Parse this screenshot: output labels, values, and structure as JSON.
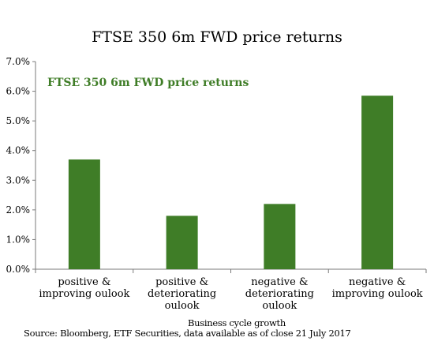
{
  "chart_data": {
    "type": "bar",
    "title": "FTSE 350 6m FWD price returns",
    "legend": "FTSE 350 6m FWD price returns",
    "legend_placement": "top-left inside plot",
    "categories": [
      [
        "positive &",
        "improving oulook"
      ],
      [
        "positive &",
        "deteriorating",
        "oulook"
      ],
      [
        "negative &",
        "deteriorating",
        "oulook"
      ],
      [
        "negative &",
        "improving oulook"
      ]
    ],
    "values": [
      3.7,
      1.8,
      2.2,
      5.85
    ],
    "ylim": [
      0,
      7
    ],
    "yticks": [
      "0.0%",
      "1.0%",
      "2.0%",
      "3.0%",
      "4.0%",
      "5.0%",
      "6.0%",
      "7.0%"
    ],
    "xlabel": "Business cycle growth",
    "ylabel": "",
    "grid": false,
    "colors": {
      "bar": "#3f7d27",
      "legend_text": "#3f7d27",
      "axis": "#7a7a7a"
    }
  },
  "source": "Source: Bloomberg, ETF Securities, data available as of close 21 July 2017"
}
